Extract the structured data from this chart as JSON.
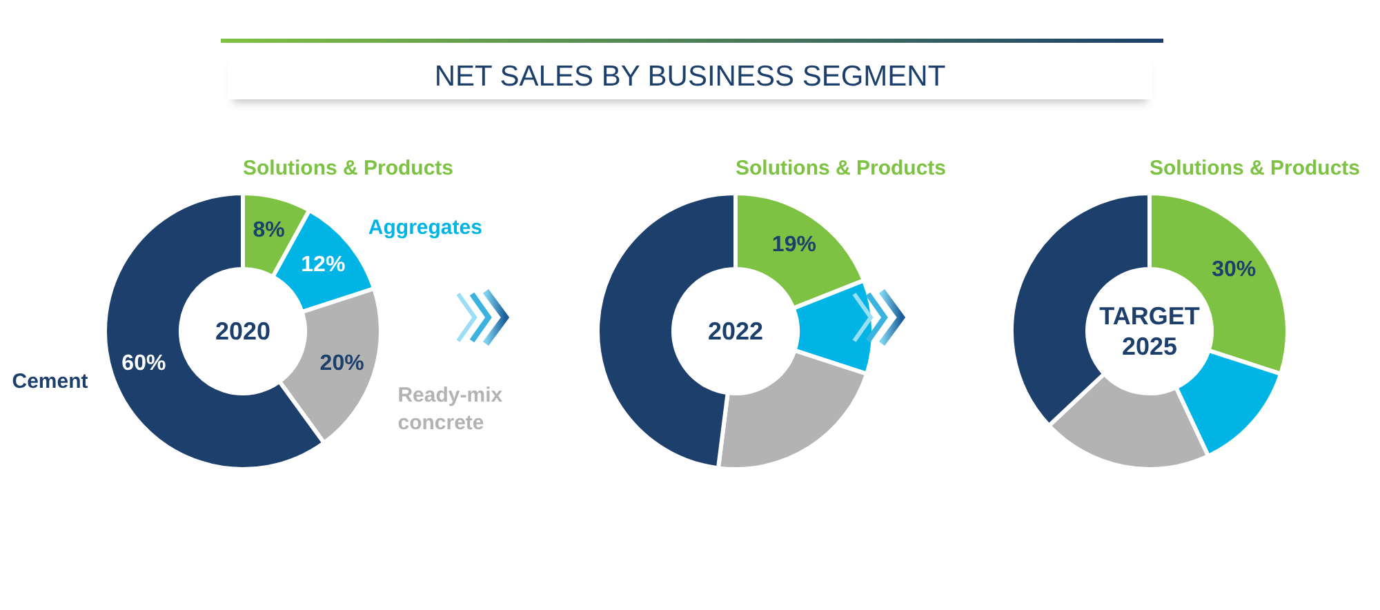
{
  "chart_data": [
    {
      "type": "donut",
      "annotations": [
        "2020"
      ],
      "categories": [
        "Solutions & Products",
        "Aggregates",
        "Ready-mix concrete",
        "Cement"
      ],
      "values": [
        8,
        12,
        20,
        60
      ],
      "colors": [
        "#7dc242",
        "#00b5e6",
        "#b3b3b3",
        "#1d3f6b"
      ],
      "value_labels": [
        "8%",
        "12%",
        "20%",
        "60%"
      ]
    },
    {
      "type": "donut",
      "title": "NET SALES BY BUSINESS SEGMENT",
      "annotations": [
        "2022"
      ],
      "categories": [
        "Solutions & Products",
        null,
        null,
        null
      ],
      "values": [
        19,
        11,
        22,
        48
      ],
      "colors": [
        "#7dc242",
        "#00b5e6",
        "#b3b3b3",
        "#1d3f6b"
      ],
      "value_labels": [
        "19%",
        null,
        null,
        null
      ]
    },
    {
      "type": "donut",
      "annotations": [
        "TARGET\n2025"
      ],
      "categories": [
        "Solutions & Products",
        null,
        null,
        null
      ],
      "values": [
        30,
        13,
        20,
        37
      ],
      "colors": [
        "#7dc242",
        "#00b5e6",
        "#b3b3b3",
        "#1d3f6b"
      ],
      "value_labels": [
        "30%",
        null,
        null,
        null
      ]
    }
  ]
}
